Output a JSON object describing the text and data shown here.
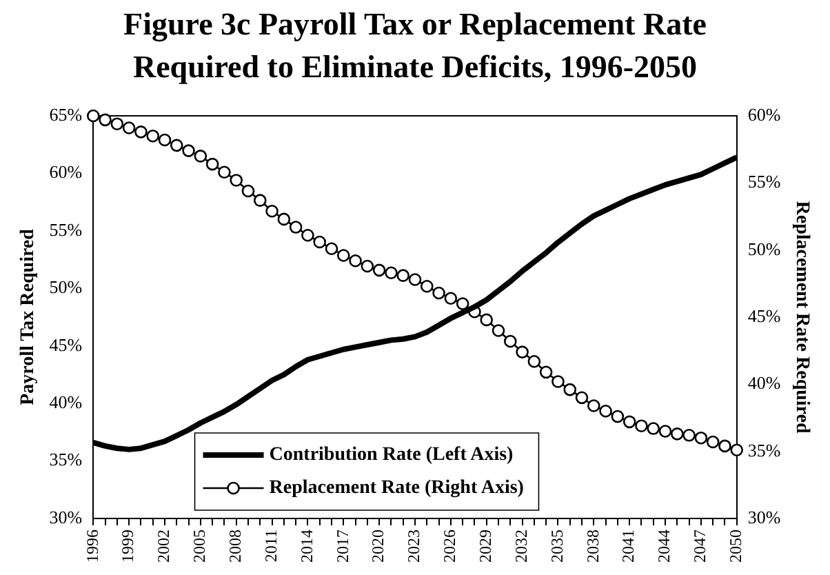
{
  "chart_data": {
    "type": "line",
    "title": "Figure 3c Payroll Tax or Replacement Rate Required to Eliminate Deficits, 1996-2050",
    "categories": [
      "1996",
      null,
      null,
      "1999",
      null,
      null,
      "2002",
      null,
      null,
      "2005",
      null,
      null,
      "2008",
      null,
      null,
      "2011",
      null,
      null,
      "2014",
      null,
      null,
      "2017",
      null,
      null,
      "2020",
      null,
      null,
      "2023",
      null,
      null,
      "2026",
      null,
      null,
      "2029",
      null,
      null,
      "2032",
      null,
      null,
      "2035",
      null,
      null,
      "2038",
      null,
      null,
      "2041",
      null,
      null,
      "2044",
      null,
      null,
      "2047",
      null,
      null,
      "2050"
    ],
    "ylabel": "Payroll Tax Required",
    "y2label": "Replacement Rate Required",
    "ylim": [
      30,
      65
    ],
    "yticks": [
      {
        "value": 30,
        "label": "30%"
      },
      {
        "value": 35,
        "label": "35%"
      },
      {
        "value": 40,
        "label": "40%"
      },
      {
        "value": 45,
        "label": "45%"
      },
      {
        "value": 50,
        "label": "50%"
      },
      {
        "value": 55,
        "label": "55%"
      },
      {
        "value": 60,
        "label": "60%"
      },
      {
        "value": 65,
        "label": "65%"
      }
    ],
    "y2lim": [
      30,
      60
    ],
    "y2ticks": [
      {
        "value": 30,
        "label": "30%"
      },
      {
        "value": 35,
        "label": "35%"
      },
      {
        "value": 40,
        "label": "40%"
      },
      {
        "value": 45,
        "label": "45%"
      },
      {
        "value": 50,
        "label": "50%"
      },
      {
        "value": 55,
        "label": "55%"
      },
      {
        "value": 60,
        "label": "60%"
      }
    ],
    "grid": false,
    "legend": "bottom",
    "series": [
      {
        "name": "Contribution Rate (Left Axis)",
        "color": "#000000",
        "marker": "none",
        "values": [
          36.6,
          36.3,
          36.1,
          36.0,
          36.1,
          36.4,
          36.7,
          37.2,
          37.7,
          38.3,
          38.8,
          39.3,
          39.9,
          40.6,
          41.3,
          42.0,
          42.5,
          43.2,
          43.8,
          44.1,
          44.4,
          44.7,
          44.9,
          45.1,
          45.3,
          45.5,
          45.6,
          45.8,
          46.2,
          46.8,
          47.4,
          47.9,
          48.4,
          49.0,
          49.8,
          50.6,
          51.5,
          52.3,
          53.1,
          54.0,
          54.8,
          55.6,
          56.3,
          56.8,
          57.3,
          57.8,
          58.2,
          58.6,
          59.0,
          59.3,
          59.6,
          59.9,
          60.4,
          60.9,
          61.4
        ]
      },
      {
        "name": "Replacement Rate (Right Axis)",
        "color": "#000000",
        "marker": "circle",
        "axis": "y2",
        "values": [
          60.0,
          59.7,
          59.4,
          59.1,
          58.8,
          58.5,
          58.2,
          57.8,
          57.4,
          57.0,
          56.4,
          55.8,
          55.2,
          54.4,
          53.7,
          52.9,
          52.3,
          51.7,
          51.1,
          50.6,
          50.1,
          49.6,
          49.2,
          48.8,
          48.5,
          48.3,
          48.1,
          47.8,
          47.3,
          46.8,
          46.4,
          46.0,
          45.4,
          44.8,
          44.0,
          43.2,
          42.4,
          41.7,
          40.9,
          40.2,
          39.6,
          39.0,
          38.4,
          38.0,
          37.6,
          37.2,
          36.9,
          36.7,
          36.5,
          36.3,
          36.2,
          36.0,
          35.7,
          35.4,
          35.1
        ]
      }
    ]
  }
}
